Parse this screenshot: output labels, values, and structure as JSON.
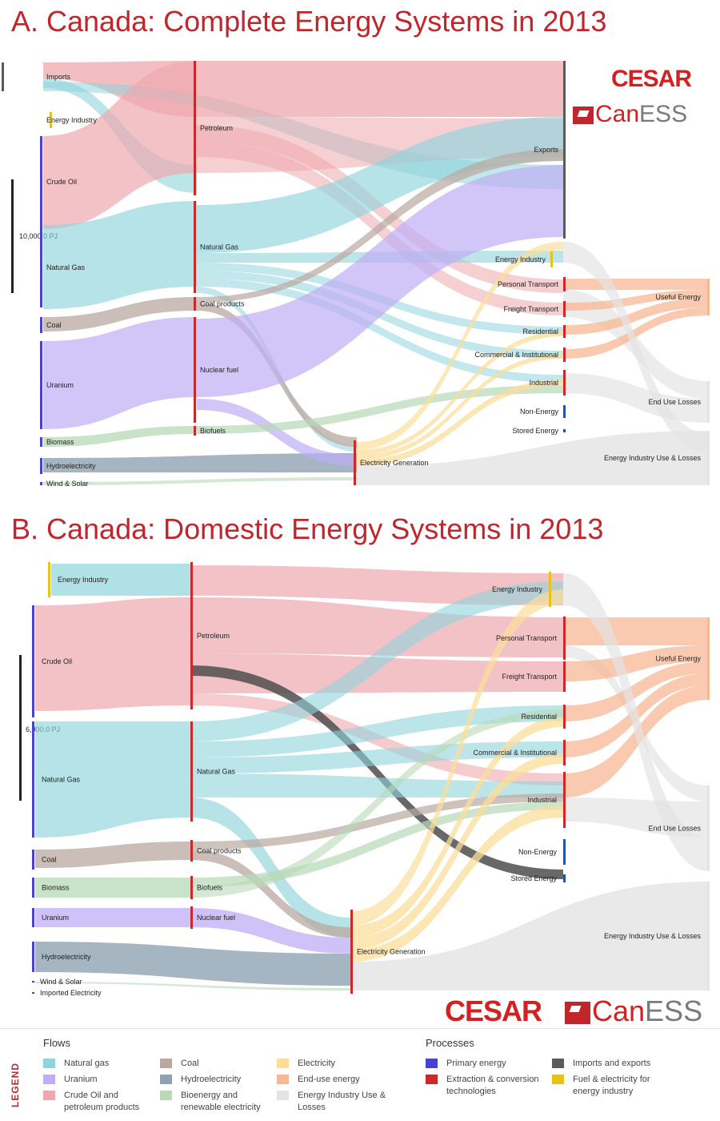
{
  "panel_a": {
    "title": "A. Canada: Complete Energy Systems in 2013",
    "scale_label": "10,000.0 PJ",
    "sources": [
      "Imports",
      "Energy Industry",
      "Crude Oil",
      "Natural Gas",
      "Coal",
      "Uranium",
      "Biomass",
      "Hydroelectricity",
      "Wind & Solar"
    ],
    "conversion": [
      "Petroleum",
      "Natural Gas",
      "Coal products",
      "Nuclear fuel",
      "Biofuels",
      "Electricity Generation"
    ],
    "sectors": [
      "Exports",
      "Energy Industry",
      "Personal Transport",
      "Freight Transport",
      "Residential",
      "Commercial & Institutional",
      "Industrial",
      "Non-Energy",
      "Stored Energy"
    ],
    "final": [
      "Useful Energy",
      "End Use Losses",
      "Energy Industry Use & Losses"
    ]
  },
  "panel_b": {
    "title": "B. Canada: Domestic Energy Systems in 2013",
    "scale_label": "6,000.0 PJ",
    "sources": [
      "Energy Industry",
      "Crude Oil",
      "Natural Gas",
      "Coal",
      "Biomass",
      "Uranium",
      "Hydroelectricity",
      "Wind & Solar",
      "Imported Electricity"
    ],
    "conversion": [
      "Petroleum",
      "Natural Gas",
      "Coal products",
      "Biofuels",
      "Nuclear fuel",
      "Electricity Generation"
    ],
    "sectors": [
      "Energy Industry",
      "Personal Transport",
      "Freight Transport",
      "Residential",
      "Commercial & Institutional",
      "Industrial",
      "Non-Energy",
      "Stored Energy"
    ],
    "final": [
      "Useful Energy",
      "End Use Losses",
      "Energy Industry Use & Losses"
    ]
  },
  "logos": {
    "cesar": "CESAR",
    "caness_can": "Can",
    "caness_ess": "ESS"
  },
  "legend": {
    "side_label": "LEGEND",
    "flows_title": "Flows",
    "processes_title": "Processes",
    "flows": [
      {
        "label": "Natural gas",
        "color": "#8fd4dc"
      },
      {
        "label": "Uranium",
        "color": "#bfaef5"
      },
      {
        "label": "Crude Oil and petroleum products",
        "color": "#eea8ae"
      },
      {
        "label": "Coal",
        "color": "#b9a8a0"
      },
      {
        "label": "Hydroelectricity",
        "color": "#8ea2b2"
      },
      {
        "label": "Bioenergy and renewable electricity",
        "color": "#b7d9b6"
      },
      {
        "label": "Electricity",
        "color": "#fbde9a"
      },
      {
        "label": "End-use energy",
        "color": "#f7b894"
      },
      {
        "label": "Energy Industry Use & Losses",
        "color": "#e4e4e4"
      }
    ],
    "processes": [
      {
        "label": "Primary energy",
        "color": "#4a40d8"
      },
      {
        "label": "Imports and exports",
        "color": "#5a5a5a"
      },
      {
        "label": "Extraction & conversion technologies",
        "color": "#cc2a2a"
      },
      {
        "label": "Fuel & electricity for energy industry",
        "color": "#e6c21a"
      }
    ]
  }
}
